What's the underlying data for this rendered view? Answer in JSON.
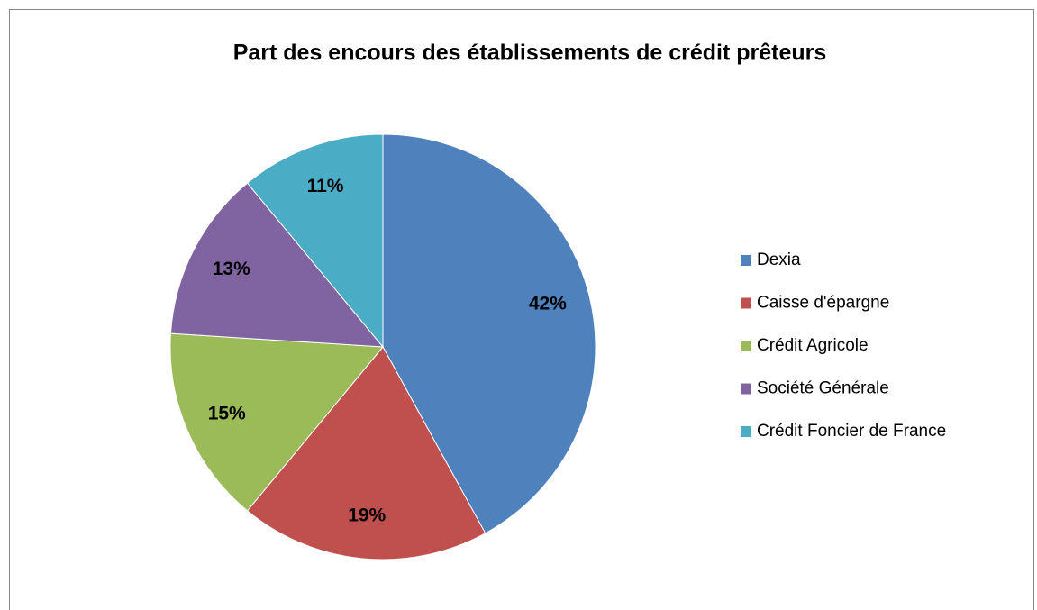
{
  "chart_data": {
    "type": "pie",
    "title": "Part des encours des établissements de crédit prêteurs",
    "categories": [
      "Dexia",
      "Caisse d'épargne",
      "Crédit Agricole",
      "Société Générale",
      "Crédit Foncier de France"
    ],
    "values": [
      42,
      19,
      15,
      13,
      11
    ],
    "value_labels": [
      "42%",
      "19%",
      "15%",
      "13%",
      "11%"
    ],
    "colors": [
      "#4f81bd",
      "#c0504d",
      "#9bbb59",
      "#8064a2",
      "#4bacc6"
    ],
    "legend": "right"
  }
}
